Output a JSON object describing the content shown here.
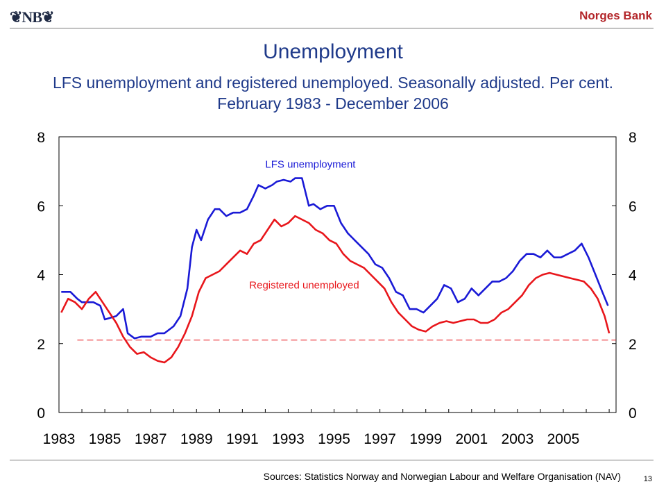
{
  "header": {
    "logo_text": "❦NB❦",
    "brand": "Norges Bank"
  },
  "slide": {
    "title": "Unemployment",
    "subtitle": "LFS unemployment and registered unemployed. Seasonally adjusted. Per cent. February 1983 - December 2006",
    "source": "Sources: Statistics Norway and Norwegian Labour and Welfare Organisation (NAV)",
    "page_number": "13"
  },
  "colors": {
    "lfs": "#1a1ad6",
    "registered": "#e8161b",
    "reference_line": "#e8161b",
    "title": "#1f3a8a",
    "brand": "#b3262a"
  },
  "chart_data": {
    "type": "line",
    "title": "Unemployment",
    "xlim": [
      1983,
      2007.3
    ],
    "ylim": [
      0,
      8
    ],
    "x_ticks": [
      "1983",
      "1985",
      "1987",
      "1989",
      "1991",
      "1993",
      "1995",
      "1997",
      "1999",
      "2001",
      "2003",
      "2005"
    ],
    "y_ticks_left": [
      "0",
      "2",
      "4",
      "6",
      "8"
    ],
    "y_ticks_right": [
      "0",
      "2",
      "4",
      "6",
      "8"
    ],
    "grid": false,
    "reference_line": {
      "y": 2.1,
      "x_start": 1983.8,
      "x_end": 2007.3,
      "style": "dashed"
    },
    "series": [
      {
        "name": "LFS unemployment",
        "x": [
          1983.1,
          1983.5,
          1983.8,
          1984.0,
          1984.5,
          1984.8,
          1985.0,
          1985.5,
          1985.8,
          1986.0,
          1986.3,
          1986.6,
          1987.0,
          1987.3,
          1987.6,
          1988.0,
          1988.3,
          1988.6,
          1988.8,
          1989.0,
          1989.2,
          1989.5,
          1989.8,
          1990.0,
          1990.3,
          1990.6,
          1990.9,
          1991.2,
          1991.5,
          1991.7,
          1992.0,
          1992.3,
          1992.5,
          1992.8,
          1993.1,
          1993.3,
          1993.6,
          1993.9,
          1994.1,
          1994.4,
          1994.7,
          1995.0,
          1995.3,
          1995.6,
          1995.9,
          1996.2,
          1996.5,
          1996.8,
          1997.1,
          1997.4,
          1997.7,
          1998.0,
          1998.3,
          1998.6,
          1998.9,
          1999.2,
          1999.5,
          1999.8,
          2000.1,
          2000.4,
          2000.7,
          2001.0,
          2001.3,
          2001.6,
          2001.9,
          2002.2,
          2002.5,
          2002.8,
          2003.1,
          2003.4,
          2003.7,
          2004.0,
          2004.3,
          2004.6,
          2004.9,
          2005.2,
          2005.5,
          2005.8,
          2006.1,
          2006.4,
          2006.7,
          2006.95
        ],
        "values": [
          3.5,
          3.5,
          3.3,
          3.2,
          3.2,
          3.1,
          2.7,
          2.8,
          3.0,
          2.3,
          2.15,
          2.2,
          2.2,
          2.3,
          2.3,
          2.5,
          2.8,
          3.6,
          4.8,
          5.3,
          5.0,
          5.6,
          5.9,
          5.9,
          5.7,
          5.8,
          5.8,
          5.9,
          6.3,
          6.6,
          6.5,
          6.6,
          6.7,
          6.75,
          6.7,
          6.8,
          6.8,
          6.0,
          6.05,
          5.9,
          6.0,
          6.0,
          5.5,
          5.2,
          5.0,
          4.8,
          4.6,
          4.3,
          4.2,
          3.9,
          3.5,
          3.4,
          3.0,
          3.0,
          2.9,
          3.1,
          3.3,
          3.7,
          3.6,
          3.2,
          3.3,
          3.6,
          3.4,
          3.6,
          3.8,
          3.8,
          3.9,
          4.1,
          4.4,
          4.6,
          4.6,
          4.5,
          4.7,
          4.5,
          4.5,
          4.6,
          4.7,
          4.9,
          4.5,
          4.0,
          3.5,
          3.1
        ]
      },
      {
        "name": "Registered unemployed",
        "x": [
          1983.1,
          1983.4,
          1983.7,
          1984.0,
          1984.3,
          1984.6,
          1984.9,
          1985.2,
          1985.5,
          1985.8,
          1986.1,
          1986.4,
          1986.7,
          1987.0,
          1987.3,
          1987.6,
          1987.9,
          1988.2,
          1988.5,
          1988.8,
          1989.1,
          1989.4,
          1989.7,
          1990.0,
          1990.3,
          1990.6,
          1990.9,
          1991.2,
          1991.5,
          1991.8,
          1992.1,
          1992.4,
          1992.7,
          1993.0,
          1993.3,
          1993.6,
          1993.9,
          1994.2,
          1994.5,
          1994.8,
          1995.1,
          1995.4,
          1995.7,
          1996.0,
          1996.3,
          1996.6,
          1996.9,
          1997.2,
          1997.5,
          1997.8,
          1998.1,
          1998.4,
          1998.7,
          1999.0,
          1999.3,
          1999.6,
          1999.9,
          2000.2,
          2000.5,
          2000.8,
          2001.1,
          2001.4,
          2001.7,
          2002.0,
          2002.3,
          2002.6,
          2002.9,
          2003.2,
          2003.5,
          2003.8,
          2004.1,
          2004.4,
          2004.7,
          2005.0,
          2005.3,
          2005.6,
          2005.9,
          2006.2,
          2006.5,
          2006.8,
          2007.0
        ],
        "values": [
          2.9,
          3.3,
          3.2,
          3.0,
          3.3,
          3.5,
          3.2,
          2.9,
          2.6,
          2.2,
          1.9,
          1.7,
          1.75,
          1.6,
          1.5,
          1.45,
          1.6,
          1.9,
          2.3,
          2.8,
          3.5,
          3.9,
          4.0,
          4.1,
          4.3,
          4.5,
          4.7,
          4.6,
          4.9,
          5.0,
          5.3,
          5.6,
          5.4,
          5.5,
          5.7,
          5.6,
          5.5,
          5.3,
          5.2,
          5.0,
          4.9,
          4.6,
          4.4,
          4.3,
          4.2,
          4.0,
          3.8,
          3.6,
          3.2,
          2.9,
          2.7,
          2.5,
          2.4,
          2.35,
          2.5,
          2.6,
          2.65,
          2.6,
          2.65,
          2.7,
          2.7,
          2.6,
          2.6,
          2.7,
          2.9,
          3.0,
          3.2,
          3.4,
          3.7,
          3.9,
          4.0,
          4.05,
          4.0,
          3.95,
          3.9,
          3.85,
          3.8,
          3.6,
          3.3,
          2.8,
          2.3
        ]
      }
    ],
    "annotations": [
      {
        "text": "LFS unemployment",
        "x": 1992.0,
        "y": 7.1,
        "series": "LFS unemployment"
      },
      {
        "text": "Registered unemployed",
        "x": 1991.3,
        "y": 3.6,
        "series": "Registered unemployed"
      }
    ]
  }
}
